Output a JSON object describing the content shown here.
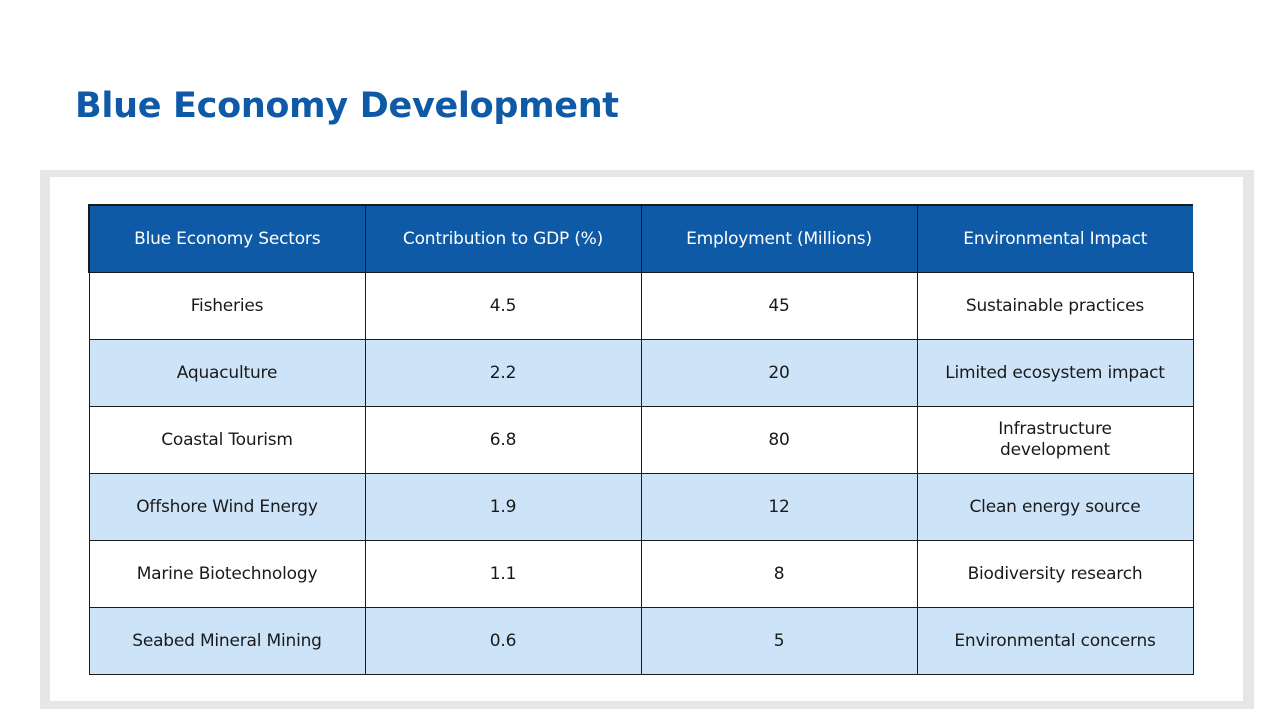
{
  "slide": {
    "title": "Blue Economy Development"
  },
  "table": {
    "headers": [
      "Blue Economy Sectors",
      "Contribution to GDP (%)",
      "Employment (Millions)",
      "Environmental Impact"
    ],
    "rows": [
      [
        "Fisheries",
        "4.5",
        "45",
        "Sustainable practices"
      ],
      [
        "Aquaculture",
        "2.2",
        "20",
        "Limited ecosystem impact"
      ],
      [
        "Coastal Tourism",
        "6.8",
        "80",
        "Infrastructure development"
      ],
      [
        "Offshore Wind Energy",
        "1.9",
        "12",
        "Clean energy source"
      ],
      [
        "Marine Biotechnology",
        "1.1",
        "8",
        "Biodiversity research"
      ],
      [
        "Seabed Mineral Mining",
        "0.6",
        "5",
        "Environmental concerns"
      ]
    ],
    "colors": {
      "header_bg": "#0e5aa7",
      "header_text": "#ffffff",
      "stripe_bg": "#cde4f8",
      "title_text": "#0e5aa7"
    }
  }
}
